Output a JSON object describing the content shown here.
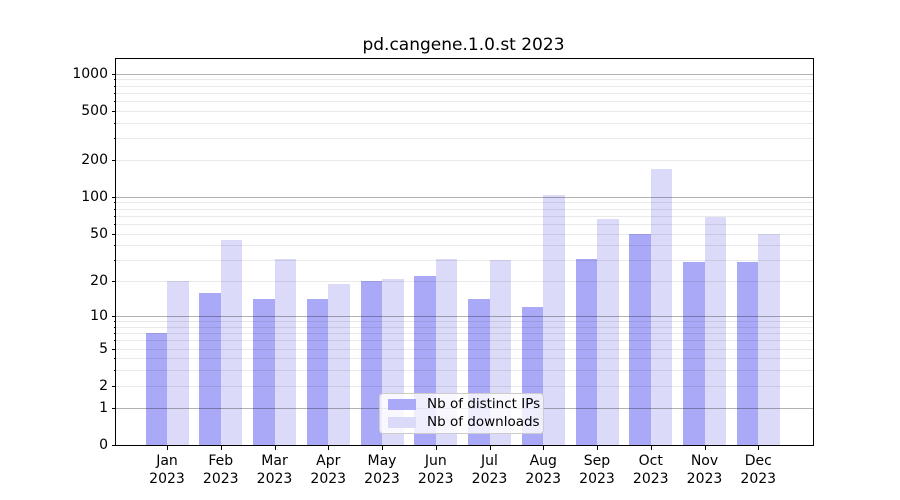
{
  "figure": {
    "background": "#ffffff"
  },
  "chart_data": {
    "type": "bar",
    "title": "pd.cangene.1.0.st 2023",
    "categories": [
      "Jan",
      "Feb",
      "Mar",
      "Apr",
      "May",
      "Jun",
      "Jul",
      "Aug",
      "Sep",
      "Oct",
      "Nov",
      "Dec"
    ],
    "x_tick_year_label": "2023",
    "series": [
      {
        "name": "Nb of distinct IPs",
        "color": "#a9a9f7",
        "values": [
          7,
          16,
          14,
          14,
          20,
          22,
          14,
          12,
          31,
          50,
          29,
          29
        ]
      },
      {
        "name": "Nb of downloads",
        "color": "#dbdbf9",
        "values": [
          20,
          44,
          31,
          19,
          21,
          31,
          30,
          104,
          66,
          170,
          68,
          50
        ]
      }
    ],
    "xlabel": "",
    "ylabel": "",
    "yscale": "log10(1+x)",
    "ylim": [
      0,
      1300
    ],
    "y_tick_values": [
      0,
      1,
      2,
      5,
      10,
      20,
      50,
      100,
      200,
      500,
      1000
    ],
    "y_major_gridline_values": [
      1,
      10,
      100,
      1000
    ],
    "grid": "both",
    "legend_position": "inside-bottom-center"
  },
  "colors": {
    "major_grid": "rgba(0,0,0,0.30)",
    "minor_grid": "rgba(0,0,0,0.085)",
    "spine": "#000000",
    "legend_border": "#cccccc",
    "legend_background": "rgba(255,255,255,0.8)"
  }
}
